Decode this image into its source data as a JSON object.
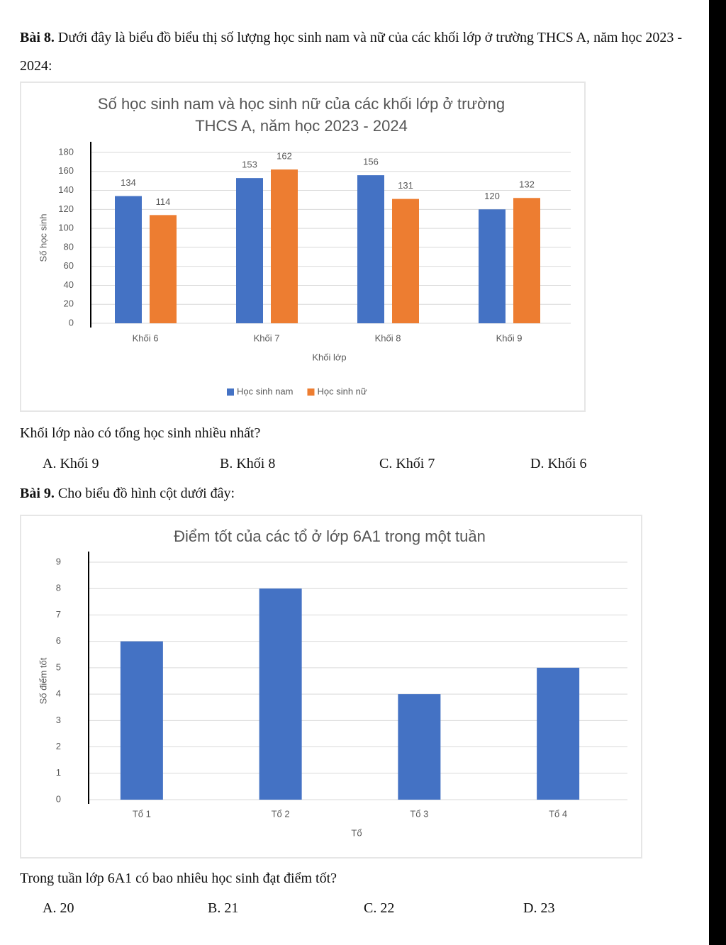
{
  "problems": [
    {
      "label": "Bài 8.",
      "text": "Dưới đây là biểu đồ biểu thị số lượng học sinh nam và nữ của các khối lớp ở trường THCS A, năm học 2023 - 2024:",
      "question": "Khối lớp nào có tổng học sinh nhiều nhất?",
      "options": [
        "A.  Khối 9",
        "B. Khối 8",
        "C. Khối 7",
        "D. Khối 6"
      ]
    },
    {
      "label": "Bài 9.",
      "text": "Cho biểu đồ hình cột dưới đây:",
      "question": "Trong tuần lớp 6A1 có bao nhiêu học sinh đạt điểm tốt?",
      "options": [
        "A.  20",
        "B. 21",
        "C. 22",
        "D. 23"
      ]
    }
  ],
  "chart_data": [
    {
      "type": "bar",
      "title": "Số học sinh nam và học sinh nữ của các khối lớp ở trường THCS A, năm học 2023 - 2024",
      "x_label": "Khối lớp",
      "y_label": "Số học sinh",
      "categories": [
        "Khối 6",
        "Khối 7",
        "Khối 8",
        "Khối 9"
      ],
      "series": [
        {
          "name": "Học sinh nam",
          "color": "#4472c4",
          "values": [
            134,
            153,
            156,
            120
          ]
        },
        {
          "name": "Học sinh nữ",
          "color": "#ed7d31",
          "values": [
            114,
            162,
            131,
            132
          ]
        }
      ],
      "ylim": [
        0,
        180
      ],
      "yticks": [
        0,
        20,
        40,
        60,
        80,
        100,
        120,
        140,
        160,
        180
      ],
      "grid": true,
      "data_labels": true,
      "legend": "bottom"
    },
    {
      "type": "bar",
      "title": "Điểm tốt của các tổ ở lớp 6A1 trong một tuần",
      "x_label": "Tổ",
      "y_label": "Số điểm tốt",
      "categories": [
        "Tổ 1",
        "Tổ 2",
        "Tổ 3",
        "Tổ 4"
      ],
      "values": [
        6,
        8,
        4,
        5
      ],
      "color": "#4472c4",
      "ylim": [
        0,
        9
      ],
      "yticks": [
        0,
        1,
        2,
        3,
        4,
        5,
        6,
        7,
        8,
        9
      ],
      "grid": true
    }
  ]
}
